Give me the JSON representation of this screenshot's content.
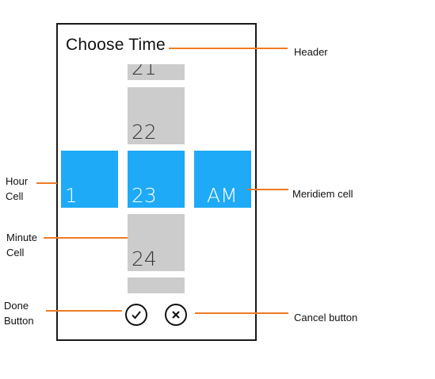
{
  "picker": {
    "header": "Choose Time",
    "minutes": [
      "21",
      "22",
      "23",
      "24"
    ],
    "hour": "1",
    "meridiem": "AM",
    "done_icon": "checkmark-icon",
    "cancel_icon": "close-icon"
  },
  "colors": {
    "selected": "#1eaaf6",
    "unselected": "#cccccc",
    "callout": "#ef7b24"
  },
  "callouts": {
    "header": "Header",
    "hour_cell": "Hour Cell",
    "minute_cell": "Minute Cell",
    "meridiem_cell": "Meridiem cell",
    "done_button": "Done Button",
    "cancel_button": "Cancel button"
  }
}
